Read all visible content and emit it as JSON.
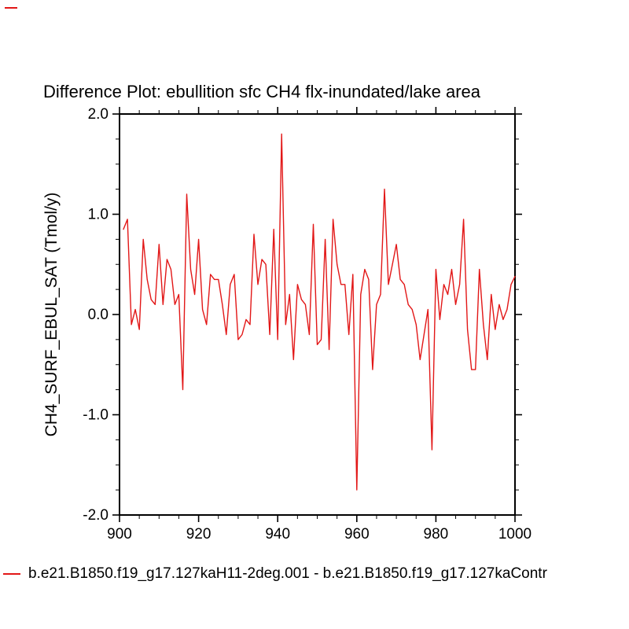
{
  "page": {
    "title": "Difference Plot: ebullition sfc CH4 flx-inundated/lake area"
  },
  "colors": {
    "line": "#e21717",
    "axis": "#000000",
    "text": "#000000",
    "background": "#ffffff"
  },
  "legend": {
    "label": "b.e21.B1850.f19_g17.127kaH11-2deg.001 - b.e21.B1850.f19_g17.127kaContr"
  },
  "chart_data": {
    "type": "line",
    "title": "Difference Plot: ebullition sfc CH4 flx-inundated/lake area",
    "xlabel": "",
    "ylabel": "CH4_SURF_EBUL_SAT  (Tmol/y)",
    "xlim": [
      900,
      1000
    ],
    "ylim": [
      -2.0,
      2.0
    ],
    "x_tick_values": [
      900,
      920,
      940,
      960,
      980,
      1000
    ],
    "x_tick_labels": [
      "900",
      "920",
      "940",
      "960",
      "980",
      "1000"
    ],
    "y_tick_values": [
      -2.0,
      -1.0,
      0.0,
      1.0,
      2.0
    ],
    "y_tick_labels": [
      "-2.0",
      "-1.0",
      "0.0",
      "1.0",
      "2.0"
    ],
    "x_minor_step": 5,
    "y_minor_step": 0.25,
    "grid": false,
    "legend_position": "bottom-left",
    "series": [
      {
        "name": "b.e21.B1850.f19_g17.127kaH11-2deg.001 - b.e21.B1850.f19_g17.127kaContr",
        "color": "#e21717",
        "x_start": 901,
        "x_step": 1,
        "values": [
          0.85,
          0.95,
          -0.1,
          0.05,
          -0.15,
          0.75,
          0.35,
          0.15,
          0.1,
          0.7,
          0.1,
          0.55,
          0.45,
          0.1,
          0.2,
          -0.75,
          1.2,
          0.45,
          0.2,
          0.75,
          0.05,
          -0.1,
          0.4,
          0.35,
          0.35,
          0.1,
          -0.2,
          0.3,
          0.4,
          -0.25,
          -0.2,
          -0.05,
          -0.1,
          0.8,
          0.3,
          0.55,
          0.5,
          -0.2,
          0.85,
          -0.25,
          1.8,
          -0.1,
          0.2,
          -0.45,
          0.3,
          0.15,
          0.1,
          -0.2,
          0.9,
          -0.3,
          -0.25,
          0.75,
          -0.35,
          0.95,
          0.5,
          0.3,
          0.3,
          -0.2,
          0.4,
          -1.75,
          0.2,
          0.45,
          0.35,
          -0.55,
          0.1,
          0.2,
          1.25,
          0.3,
          0.5,
          0.7,
          0.35,
          0.3,
          0.1,
          0.05,
          -0.1,
          -0.45,
          -0.2,
          0.05,
          -1.35,
          0.45,
          -0.05,
          0.3,
          0.2,
          0.45,
          0.1,
          0.3,
          0.95,
          -0.15,
          -0.55,
          -0.55,
          0.45,
          -0.1,
          -0.45,
          0.2,
          -0.15,
          0.1,
          -0.05,
          0.05,
          0.3,
          0.38
        ]
      }
    ]
  }
}
